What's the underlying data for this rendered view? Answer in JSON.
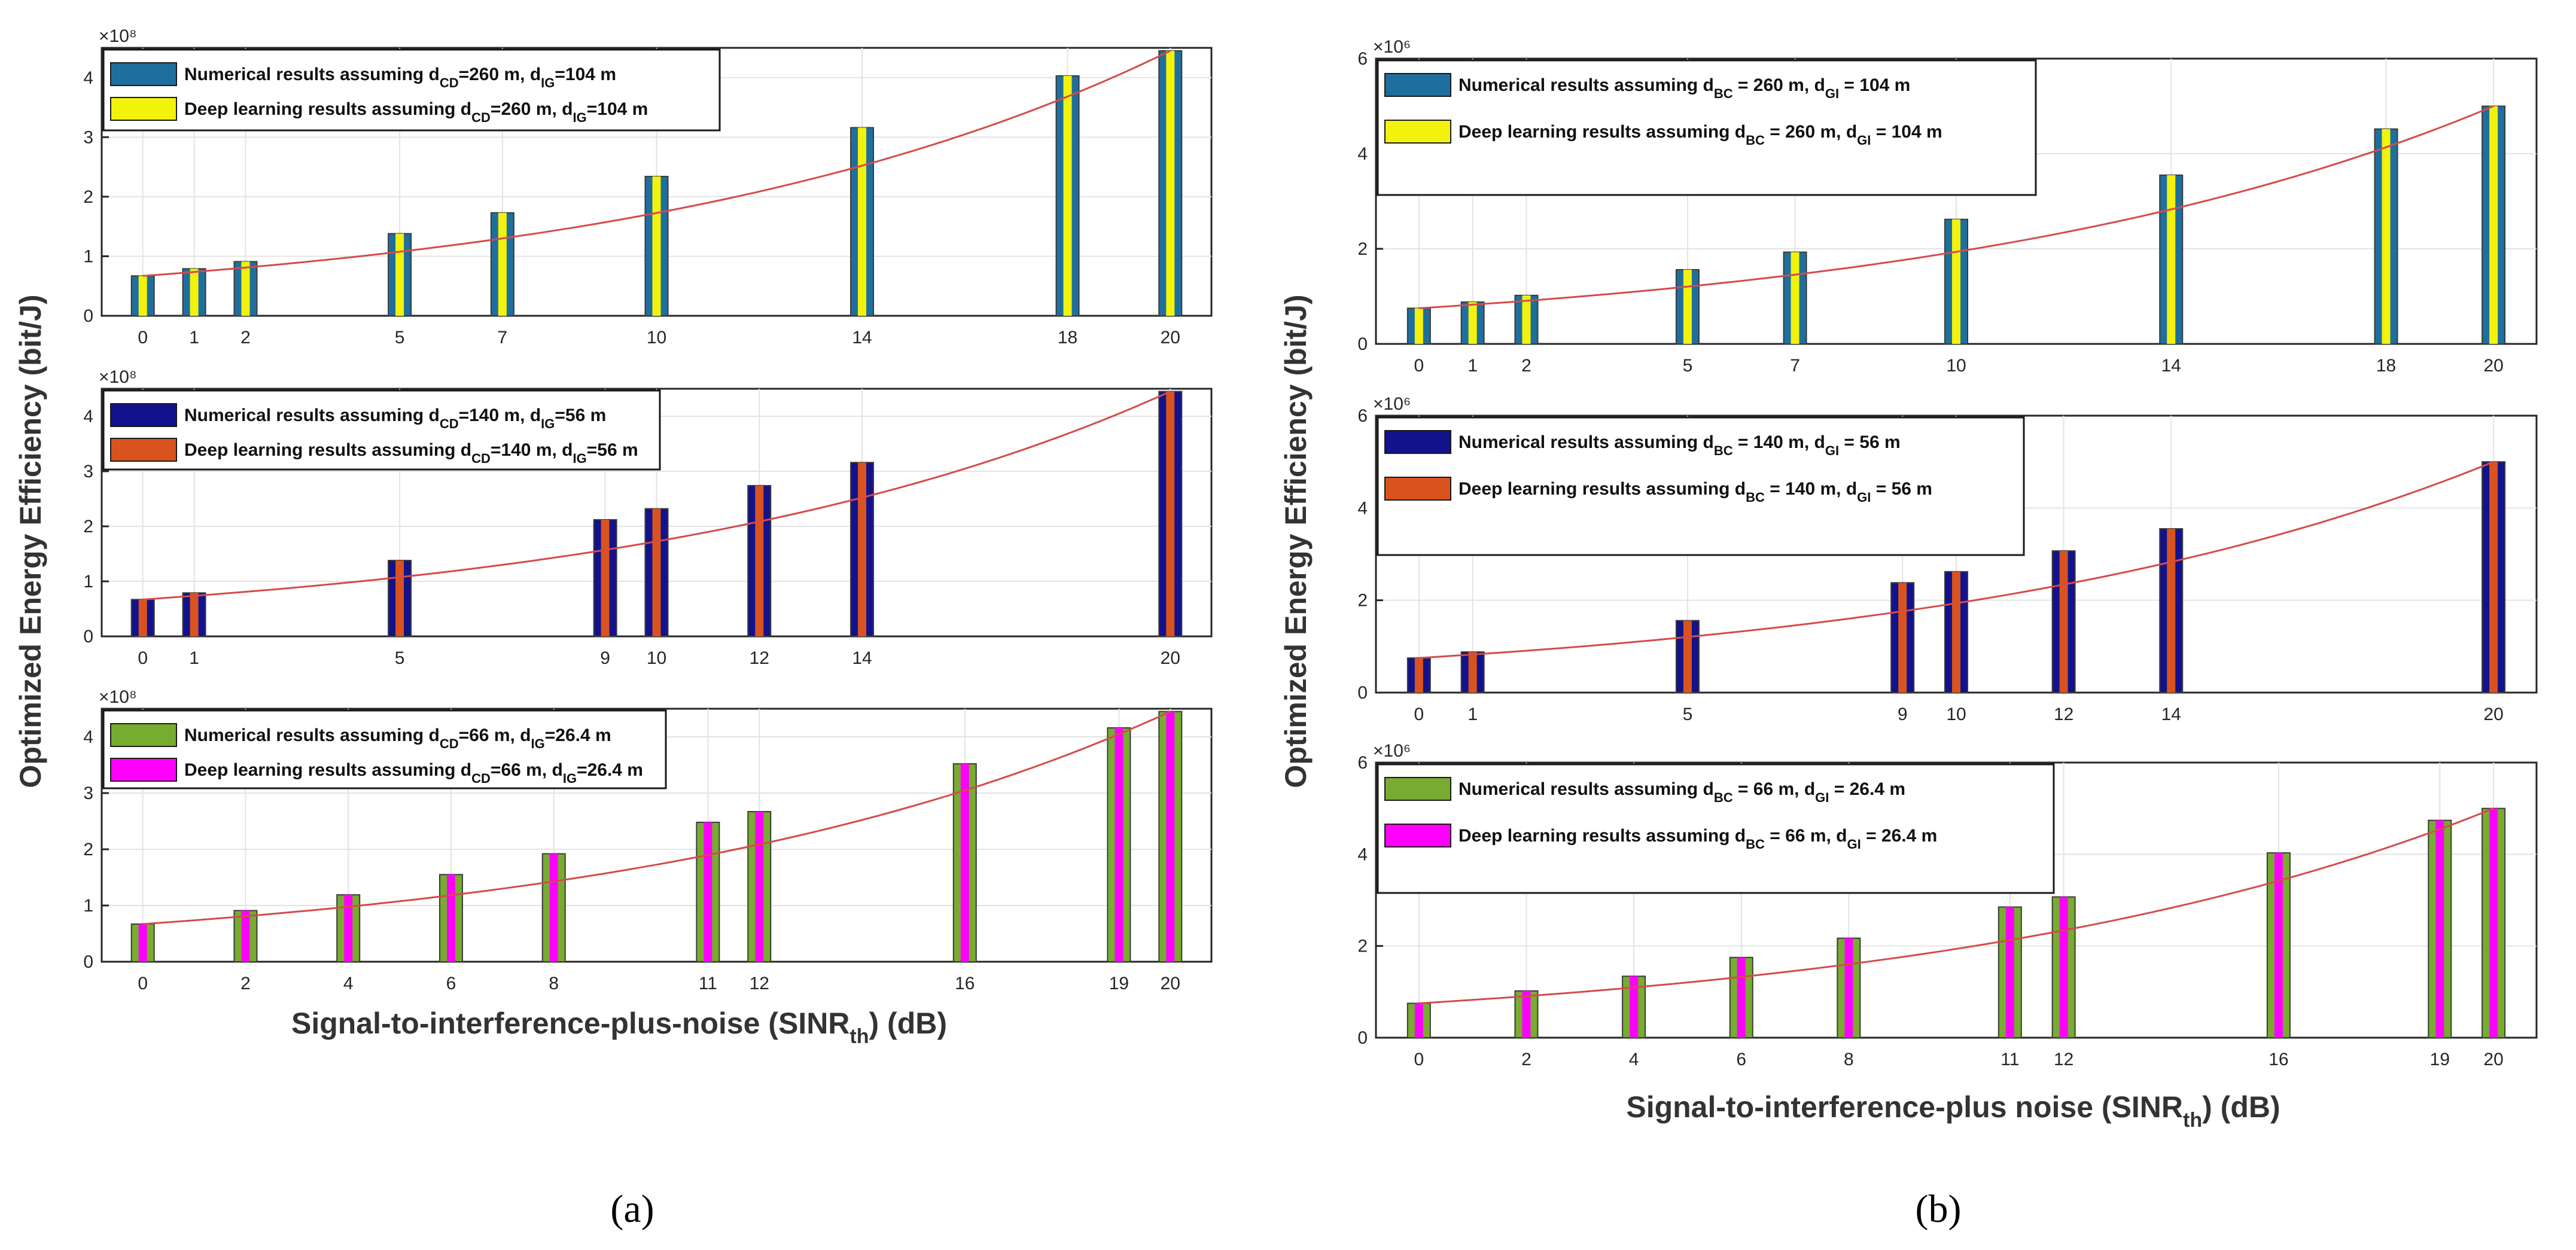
{
  "figure": {
    "panel_labels": [
      "(a)",
      "(b)"
    ]
  },
  "chart_data": [
    {
      "type": "bar",
      "panel": "a",
      "row": 1,
      "ylim": [
        0,
        4.5
      ],
      "yticks": [
        0,
        1,
        2,
        3,
        4
      ],
      "y_exponent": "×10⁸",
      "x": [
        0,
        1,
        2,
        5,
        7,
        10,
        14,
        18,
        20
      ],
      "xlim": [
        -0.8,
        20.8
      ],
      "x_tick_labels": [
        "0",
        "1",
        "2",
        "5",
        "7",
        "10",
        "14",
        "18",
        "20"
      ],
      "series": [
        {
          "name": "Numerical results assuming d_CD=260 m, d_IG=104 m",
          "color": "#1f6f9e",
          "values": [
            0.67,
            0.79,
            0.91,
            1.38,
            1.73,
            2.34,
            3.16,
            4.03,
            4.45
          ]
        },
        {
          "name": "Deep learning results assuming d_CD=260 m, d_IG=104 m",
          "color": "#f2f20d",
          "values": [
            0.67,
            0.79,
            0.91,
            1.38,
            1.73,
            2.34,
            3.16,
            4.03,
            4.45
          ]
        }
      ],
      "legend": [
        {
          "prefix": "Numerical results assuming d",
          "s1": "CD",
          "m1": "=260 m, d",
          "s2": "IG",
          "m2": "=104 m"
        },
        {
          "prefix": "Deep learning results assuming d",
          "s1": "CD",
          "m1": "=260 m, d",
          "s2": "IG",
          "m2": "=104 m"
        }
      ],
      "legend_placement": "top-left",
      "trend_line": true,
      "grid": true
    },
    {
      "type": "bar",
      "panel": "a",
      "row": 2,
      "ylim": [
        0,
        4.5
      ],
      "yticks": [
        0,
        1,
        2,
        3,
        4
      ],
      "y_exponent": "×10⁸",
      "x": [
        0,
        1,
        5,
        9,
        10,
        12,
        14,
        20
      ],
      "xlim": [
        -0.8,
        20.8
      ],
      "x_tick_labels": [
        "0",
        "1",
        "5",
        "9",
        "10",
        "12",
        "14",
        "20"
      ],
      "series": [
        {
          "name": "Numerical results assuming d_CD=140 m, d_IG=56 m",
          "color": "#12128c",
          "values": [
            0.67,
            0.79,
            1.38,
            2.12,
            2.32,
            2.74,
            3.16,
            4.45
          ]
        },
        {
          "name": "Deep learning results assuming d_CD=140 m, d_IG=56 m",
          "color": "#d9531e",
          "values": [
            0.67,
            0.79,
            1.38,
            2.12,
            2.32,
            2.74,
            3.16,
            4.45
          ]
        }
      ],
      "legend": [
        {
          "prefix": "Numerical results assuming d",
          "s1": "CD",
          "m1": "=140 m, d",
          "s2": "IG",
          "m2": "=56 m"
        },
        {
          "prefix": "Deep learning results assuming d",
          "s1": "CD",
          "m1": "=140 m, d",
          "s2": "IG",
          "m2": "=56 m"
        }
      ],
      "legend_placement": "top-left",
      "trend_line": true,
      "grid": true
    },
    {
      "type": "bar",
      "panel": "a",
      "row": 3,
      "ylim": [
        0,
        4.5
      ],
      "yticks": [
        0,
        1,
        2,
        3,
        4
      ],
      "y_exponent": "×10⁸",
      "x": [
        0,
        2,
        4,
        6,
        8,
        11,
        12,
        16,
        19,
        20
      ],
      "xlim": [
        -0.8,
        20.8
      ],
      "x_tick_labels": [
        "0",
        "2",
        "4",
        "6",
        "8",
        "11",
        "12",
        "16",
        "19",
        "20"
      ],
      "series": [
        {
          "name": "Numerical results assuming d_CD=66 m, d_IG=26.4 m",
          "color": "#77ac30",
          "values": [
            0.67,
            0.91,
            1.19,
            1.55,
            1.92,
            2.48,
            2.67,
            3.52,
            4.16,
            4.45
          ]
        },
        {
          "name": "Deep learning results assuming d_CD=66 m, d_IG=26.4 m",
          "color": "#ff00ff",
          "values": [
            0.67,
            0.91,
            1.19,
            1.55,
            1.92,
            2.48,
            2.67,
            3.52,
            4.16,
            4.45
          ]
        }
      ],
      "legend": [
        {
          "prefix": "Numerical results assuming d",
          "s1": "CD",
          "m1": "=66 m, d",
          "s2": "IG",
          "m2": "=26.4 m"
        },
        {
          "prefix": "Deep learning results assuming d",
          "s1": "CD",
          "m1": "=66 m, d",
          "s2": "IG",
          "m2": "=26.4 m"
        }
      ],
      "legend_placement": "top-left",
      "trend_line": true,
      "grid": true,
      "xlabel": "Signal-to-interference-plus-noise (SINR_th) (dB)"
    },
    {
      "type": "bar",
      "panel": "b",
      "row": 1,
      "ylim": [
        0,
        6
      ],
      "yticks": [
        0,
        2,
        4,
        6
      ],
      "y_exponent": "×10⁶",
      "x": [
        0,
        1,
        2,
        5,
        7,
        10,
        14,
        18,
        20
      ],
      "xlim": [
        -0.8,
        20.8
      ],
      "x_tick_labels": [
        "0",
        "1",
        "2",
        "5",
        "7",
        "10",
        "14",
        "18",
        "20"
      ],
      "series": [
        {
          "name": "Numerical results assuming d_BC = 260 m, d_GI = 104 m",
          "color": "#1f6f9e",
          "values": [
            0.75,
            0.88,
            1.02,
            1.56,
            1.93,
            2.62,
            3.55,
            4.52,
            5.0
          ]
        },
        {
          "name": "Deep learning results assuming d_BC = 260 m, d_GI = 104 m",
          "color": "#f2f20d",
          "values": [
            0.75,
            0.88,
            1.02,
            1.56,
            1.93,
            2.62,
            3.55,
            4.52,
            5.0
          ]
        }
      ],
      "legend": [
        {
          "prefix": "Numerical results assuming d",
          "s1": "BC",
          "m1": " = 260 m, d",
          "s2": "GI",
          "m2": " = 104 m"
        },
        {
          "prefix": "Deep learning results assuming d",
          "s1": "BC",
          "m1": " = 260 m, d",
          "s2": "GI",
          "m2": " = 104 m"
        }
      ],
      "legend_placement": "top-left",
      "trend_line": true,
      "grid": true
    },
    {
      "type": "bar",
      "panel": "b",
      "row": 2,
      "ylim": [
        0,
        6
      ],
      "yticks": [
        0,
        2,
        4,
        6
      ],
      "y_exponent": "×10⁶",
      "x": [
        0,
        1,
        5,
        9,
        10,
        12,
        14,
        20
      ],
      "xlim": [
        -0.8,
        20.8
      ],
      "x_tick_labels": [
        "0",
        "1",
        "5",
        "9",
        "10",
        "12",
        "14",
        "20"
      ],
      "series": [
        {
          "name": "Numerical results assuming d_BC = 140 m, d_GI = 56 m",
          "color": "#12128c",
          "values": [
            0.75,
            0.88,
            1.56,
            2.38,
            2.62,
            3.07,
            3.55,
            5.0
          ]
        },
        {
          "name": "Deep learning results assuming d_BC = 140 m, d_GI = 56 m",
          "color": "#d9531e",
          "values": [
            0.75,
            0.88,
            1.56,
            2.38,
            2.62,
            3.07,
            3.55,
            5.0
          ]
        }
      ],
      "legend": [
        {
          "prefix": "Numerical results assuming d",
          "s1": "BC",
          "m1": " = 140 m, d",
          "s2": "GI",
          "m2": " = 56 m"
        },
        {
          "prefix": "Deep learning results assuming d",
          "s1": "BC",
          "m1": " = 140 m, d",
          "s2": "GI",
          "m2": " = 56 m"
        }
      ],
      "legend_placement": "top-left",
      "trend_line": true,
      "grid": true
    },
    {
      "type": "bar",
      "panel": "b",
      "row": 3,
      "ylim": [
        0,
        6
      ],
      "yticks": [
        0,
        2,
        4,
        6
      ],
      "y_exponent": "×10⁶",
      "x": [
        0,
        2,
        4,
        6,
        8,
        11,
        12,
        16,
        19,
        20
      ],
      "xlim": [
        -0.8,
        20.8
      ],
      "x_tick_labels": [
        "0",
        "2",
        "4",
        "6",
        "8",
        "11",
        "12",
        "16",
        "19",
        "20"
      ],
      "series": [
        {
          "name": "Numerical results assuming d_BC = 66 m, d_GI = 26.4 m",
          "color": "#77ac30",
          "values": [
            0.75,
            1.02,
            1.34,
            1.75,
            2.17,
            2.85,
            3.07,
            4.03,
            4.74,
            5.0
          ]
        },
        {
          "name": "Deep learning results assuming d_BC = 66 m, d_GI = 26.4 m",
          "color": "#ff00ff",
          "values": [
            0.75,
            1.02,
            1.34,
            1.75,
            2.17,
            2.85,
            3.07,
            4.03,
            4.74,
            5.0
          ]
        }
      ],
      "legend": [
        {
          "prefix": "Numerical results assuming d",
          "s1": "BC",
          "m1": " = 66 m, d",
          "s2": "GI",
          "m2": " = 26.4 m"
        },
        {
          "prefix": "Deep learning results assuming d",
          "s1": "BC",
          "m1": " = 66 m, d",
          "s2": "GI",
          "m2": " = 26.4 m"
        }
      ],
      "legend_placement": "top-left",
      "trend_line": true,
      "grid": true,
      "xlabel": "Signal-to-interference-plus noise (SINR_th) (dB)"
    }
  ],
  "axis_titles": {
    "a_ylabel": "Optimized Energy Efficiency (bit/J)",
    "a_xlabel_main": "Signal-to-interference-plus-noise (SINR",
    "a_xlabel_sub": "th",
    "a_xlabel_tail": ") (dB)",
    "b_ylabel": "Optimized Energy Efficiency (bit/J)",
    "b_xlabel_main": "Signal-to-interference-plus noise (SINR",
    "b_xlabel_sub": "th",
    "b_xlabel_tail": ") (dB)"
  }
}
